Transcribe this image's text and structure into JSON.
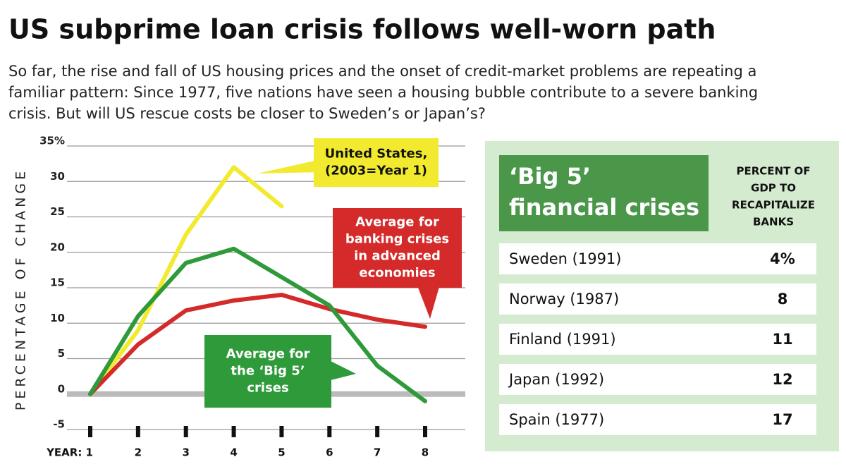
{
  "chart_data": {
    "type": "line",
    "title": "US subprime loan crisis follows well-worn path",
    "subtitle": [
      "So far, the rise and fall of US housing prices and the onset of credit-market problems are repeating a",
      "familiar pattern: Since 1977, five nations have seen a housing bubble contribute to a severe banking",
      "crisis. But will US rescue costs be closer to Sweden’s or Japan’s?"
    ],
    "y_label": "PERCENTAGE OF CHANGE",
    "x": [
      1,
      2,
      3,
      4,
      5,
      6,
      7,
      8
    ],
    "xlim": [
      1,
      8
    ],
    "xticks": [
      {
        "value": 1,
        "label": "YEAR: 1"
      },
      2,
      3,
      4,
      5,
      6,
      7,
      8
    ],
    "ylim": [
      -5,
      35
    ],
    "yticks": [
      -5,
      0,
      5,
      10,
      15,
      20,
      25,
      30,
      {
        "value": 35,
        "label": "35%"
      }
    ],
    "grid": true,
    "series": [
      {
        "name": [
          "United States,",
          "(2003=Year 1)"
        ],
        "color": "#f2ea2e",
        "values": [
          0,
          9,
          22.5,
          32,
          26.5,
          null,
          null,
          null
        ]
      },
      {
        "name": [
          "Average for",
          "banking crises",
          "in advanced",
          "economies"
        ],
        "color": "#d42a2a",
        "values": [
          0,
          7,
          11.8,
          13.2,
          14,
          12,
          10.5,
          9.5
        ]
      },
      {
        "name": [
          "Average for",
          "the ‘Big 5’",
          "crises"
        ],
        "color": "#2f9a3a",
        "values": [
          0,
          11,
          18.5,
          20.5,
          16.5,
          12.5,
          4,
          -1
        ]
      }
    ]
  },
  "table": {
    "title": [
      "‘Big 5’",
      "financial  crises"
    ],
    "column_header": [
      "PERCENT OF",
      "GDP TO",
      "RECAPITALIZE",
      "BANKS"
    ],
    "rows": [
      [
        "Sweden  (1991)",
        "4%"
      ],
      [
        "Norway (1987)",
        "8"
      ],
      [
        "Finland (1991)",
        "11"
      ],
      [
        "Japan (1992)",
        "12"
      ],
      [
        "Spain (1977)",
        "17"
      ]
    ]
  }
}
